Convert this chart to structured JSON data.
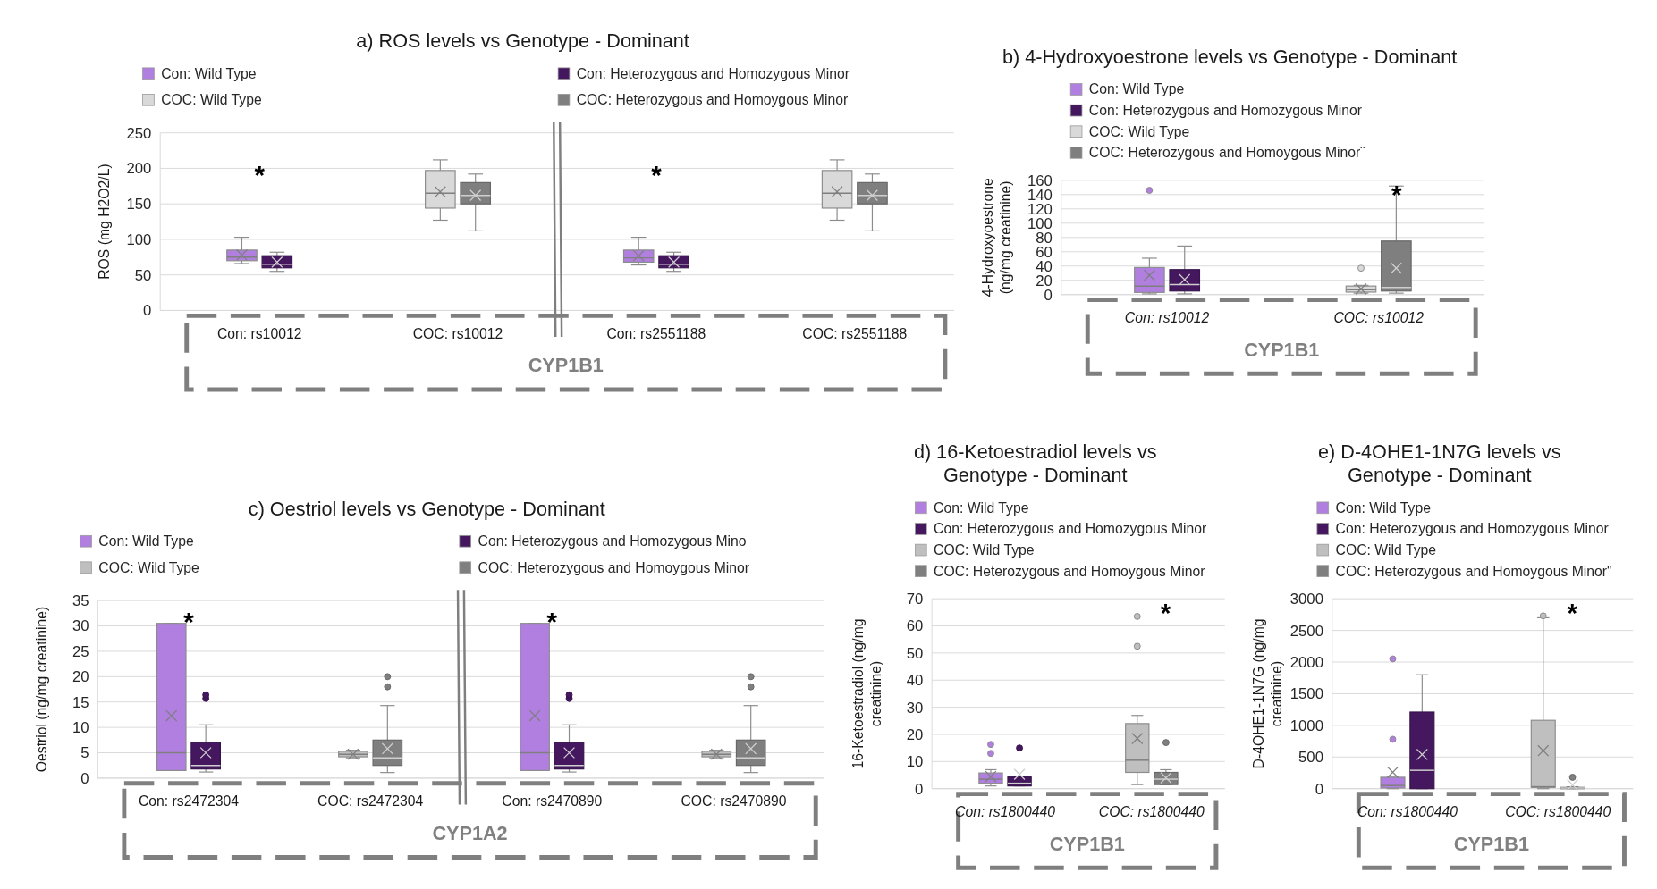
{
  "chart_data": [
    {
      "type": "box",
      "title": "a) ROS levels vs Genotype - Dominant",
      "ylabel": "ROS (mg H2O2/L)",
      "xlabel": "CYP1B1",
      "categories": [
        "Con: rs10012",
        "COC: rs10012",
        "Con: rs2551188",
        "COC: rs2551188"
      ],
      "ylim": [
        0,
        250
      ],
      "yticks": [
        0,
        50,
        100,
        150,
        200,
        250
      ],
      "grid": "y",
      "legend": "top",
      "annotations": [
        "*",
        "*"
      ],
      "series": [
        {
          "name": "Con: Wild Type",
          "color": "#b07fe0",
          "boxes": [
            {
              "low": 66,
              "q1": 70,
              "median": 75,
              "q3": 85,
              "high": 103,
              "mean": 78
            },
            null,
            {
              "low": 64,
              "q1": 68,
              "median": 74,
              "q3": 85,
              "high": 103,
              "mean": 77
            },
            null
          ]
        },
        {
          "name": "Con: Heterozygous and Homozygous Minor",
          "color": "#44175e",
          "boxes": [
            {
              "low": 55,
              "q1": 60,
              "median": 65,
              "q3": 77,
              "high": 82,
              "mean": 68
            },
            null,
            {
              "low": 55,
              "q1": 60,
              "median": 65,
              "q3": 77,
              "high": 82,
              "mean": 68
            },
            null
          ]
        },
        {
          "name": "COC: Wild Type",
          "color": "#d9d9d9",
          "boxes": [
            null,
            {
              "low": 127,
              "q1": 144,
              "median": 165,
              "q3": 197,
              "high": 212,
              "mean": 167
            },
            null,
            {
              "low": 127,
              "q1": 144,
              "median": 165,
              "q3": 197,
              "high": 212,
              "mean": 167
            }
          ]
        },
        {
          "name": "COC: Heterozygous and Homoygous Minor",
          "color": "#7f7f7f",
          "boxes": [
            null,
            {
              "low": 112,
              "q1": 150,
              "median": 162,
              "q3": 180,
              "high": 192,
              "mean": 162
            },
            null,
            {
              "low": 112,
              "q1": 150,
              "median": 162,
              "q3": 180,
              "high": 192,
              "mean": 162
            }
          ]
        }
      ]
    },
    {
      "type": "box",
      "title": "b) 4-Hydroxyoestrone levels vs Genotype - Dominant",
      "ylabel": "4-Hydroxyoestrone (ng/mg creatinine)",
      "xlabel": "CYP1B1",
      "categories": [
        "Con: rs10012",
        "COC: rs10012"
      ],
      "ylim": [
        0,
        160
      ],
      "yticks": [
        0,
        20,
        40,
        60,
        80,
        100,
        120,
        140,
        160
      ],
      "grid": "y",
      "legend": "top",
      "annotations": [
        "*"
      ],
      "series": [
        {
          "name": "Con: Wild Type",
          "color": "#b07fe0",
          "boxes": [
            {
              "low": 1,
              "q1": 3,
              "median": 12,
              "q3": 38,
              "high": 51,
              "mean": 27,
              "outliers": [
                146
              ]
            },
            null
          ]
        },
        {
          "name": "Con: Heterozygous and Homozygous Minor",
          "color": "#44175e",
          "boxes": [
            {
              "low": 1,
              "q1": 5,
              "median": 14,
              "q3": 35,
              "high": 68,
              "mean": 21
            },
            null
          ]
        },
        {
          "name": "COC: Wild Type",
          "color": "#d9d9d9",
          "boxes": [
            null,
            {
              "low": 2,
              "q1": 3.5,
              "median": 7,
              "q3": 12,
              "high": 13,
              "mean": 8,
              "outliers": [
                37
              ]
            }
          ]
        },
        {
          "name": "COC: Heterozygous and Homoygous Minor¨",
          "color": "#7f7f7f",
          "boxes": [
            null,
            {
              "low": 2,
              "q1": 5,
              "median": 10,
              "q3": 75,
              "high": 152,
              "mean": 37
            }
          ]
        }
      ]
    },
    {
      "type": "box",
      "title": "c) Oestriol levels vs Genotype - Dominant",
      "ylabel": "Oestriol (ng/mg creatinine)",
      "xlabel": "CYP1A2",
      "categories": [
        "Con: rs2472304",
        "COC: rs2472304",
        "Con: rs2470890",
        "COC: rs2470890"
      ],
      "ylim": [
        0,
        35
      ],
      "yticks": [
        0,
        5,
        10,
        15,
        20,
        25,
        30,
        35
      ],
      "grid": "y",
      "legend": "top",
      "annotations": [
        "*",
        "*"
      ],
      "series": [
        {
          "name": "Con: Wild Type",
          "color": "#b07fe0",
          "boxes": [
            {
              "low": 1.5,
              "q1": 1.5,
              "median": 5,
              "q3": 30.5,
              "high": 30.5,
              "mean": 12.3
            },
            null,
            {
              "low": 1.5,
              "q1": 1.5,
              "median": 5,
              "q3": 30.5,
              "high": 30.5,
              "mean": 12.3
            },
            null
          ]
        },
        {
          "name": "Con: Heterozygous and Homozygous Mino",
          "color": "#44175e",
          "boxes": [
            {
              "low": 1.2,
              "q1": 1.8,
              "median": 2.5,
              "q3": 7,
              "high": 10.5,
              "mean": 5,
              "outliers": [
                15.7,
                16.4
              ]
            },
            null,
            {
              "low": 1.2,
              "q1": 1.8,
              "median": 2.5,
              "q3": 7,
              "high": 10.5,
              "mean": 5,
              "outliers": [
                15.7,
                16.4
              ]
            },
            null
          ]
        },
        {
          "name": "COC: Wild Type",
          "color": "#bfbfbf",
          "boxes": [
            null,
            {
              "low": 4,
              "q1": 4.2,
              "median": 4.7,
              "q3": 5.3,
              "high": 5.5,
              "mean": 4.7
            },
            null,
            {
              "low": 4,
              "q1": 4.2,
              "median": 4.7,
              "q3": 5.3,
              "high": 5.5,
              "mean": 4.7
            }
          ]
        },
        {
          "name": "COC: Heterozygous and Homoygous Minor",
          "color": "#7f7f7f",
          "boxes": [
            null,
            {
              "low": 1.1,
              "q1": 2.5,
              "median": 4,
              "q3": 7.5,
              "high": 14.3,
              "mean": 5.8,
              "outliers": [
                18,
                20
              ]
            },
            null,
            {
              "low": 1.1,
              "q1": 2.5,
              "median": 4,
              "q3": 7.5,
              "high": 14.3,
              "mean": 5.8,
              "outliers": [
                18,
                20
              ]
            }
          ]
        }
      ]
    },
    {
      "type": "box",
      "title": "d) 16-Ketoestradiol levels vs Genotype - Dominant",
      "ylabel": "16-Ketoestradiol (ng/mg creatinine)",
      "xlabel": "CYP1B1",
      "categories": [
        "Con: rs1800440",
        "COC: rs1800440"
      ],
      "ylim": [
        0,
        70
      ],
      "yticks": [
        0,
        10,
        20,
        30,
        40,
        50,
        60,
        70
      ],
      "grid": "y",
      "legend": "top",
      "annotations": [
        "*"
      ],
      "series": [
        {
          "name": "Con: Wild Type",
          "color": "#b07fe0",
          "boxes": [
            {
              "low": 1,
              "q1": 2,
              "median": 3.5,
              "q3": 5.8,
              "high": 7,
              "mean": 4.5,
              "outliers": [
                13,
                16.3
              ]
            },
            null
          ]
        },
        {
          "name": "Con: Heterozygous and Homozygous Minor",
          "color": "#44175e",
          "boxes": [
            {
              "low": 1,
              "q1": 1,
              "median": 2,
              "q3": 4.3,
              "high": 4.5,
              "mean": 5.3,
              "outliers": [
                15
              ]
            },
            null
          ]
        },
        {
          "name": "COC: Wild Type",
          "color": "#bfbfbf",
          "boxes": [
            null,
            {
              "low": 1.5,
              "q1": 6,
              "median": 10.5,
              "q3": 24,
              "high": 27,
              "mean": 18.5,
              "outliers": [
                52.5,
                63.5
              ]
            }
          ]
        },
        {
          "name": "COC: Heterozygous and Homoygous Minor",
          "color": "#7f7f7f",
          "boxes": [
            null,
            {
              "low": 1.5,
              "q1": 1.5,
              "median": 3.5,
              "q3": 6,
              "high": 7,
              "mean": 4,
              "outliers": [
                17
              ]
            }
          ]
        }
      ]
    },
    {
      "type": "box",
      "title": "e) D-4OHE1-1N7G levels vs Genotype - Dominant",
      "ylabel": "D-4OHE1-1N7G (ng/mg creatinine)",
      "xlabel": "CYP1B1",
      "categories": [
        "Con: rs1800440",
        "COC: rs1800440"
      ],
      "ylim": [
        0,
        3000
      ],
      "yticks": [
        0,
        500,
        1000,
        1500,
        2000,
        2500,
        3000
      ],
      "grid": "y",
      "legend": "top",
      "annotations": [
        "*"
      ],
      "series": [
        {
          "name": "Con: Wild Type",
          "color": "#b07fe0",
          "boxes": [
            {
              "low": 0,
              "q1": 10,
              "median": 50,
              "q3": 180,
              "high": 180,
              "mean": 260,
              "outliers": [
                780,
                2050
              ]
            },
            null
          ]
        },
        {
          "name": "Con: Heterozygous and Homozygous Minor",
          "color": "#44175e",
          "boxes": [
            {
              "low": 0,
              "q1": 0,
              "median": 290,
              "q3": 1210,
              "high": 1800,
              "mean": 540
            },
            null
          ]
        },
        {
          "name": "COC: Wild Type",
          "color": "#bfbfbf",
          "boxes": [
            null,
            {
              "low": 0,
              "q1": 20,
              "median": 30,
              "q3": 1080,
              "high": 2700,
              "mean": 600,
              "outliers": [
                2730
              ]
            }
          ]
        },
        {
          "name": "COC: Heterozygous and Homoygous Minor\"",
          "color": "#7f7f7f",
          "boxes": [
            null,
            {
              "low": 0,
              "q1": 0,
              "median": 10,
              "q3": 20,
              "high": 30,
              "mean": 60,
              "outliers": [
                180
              ]
            }
          ]
        }
      ]
    }
  ]
}
